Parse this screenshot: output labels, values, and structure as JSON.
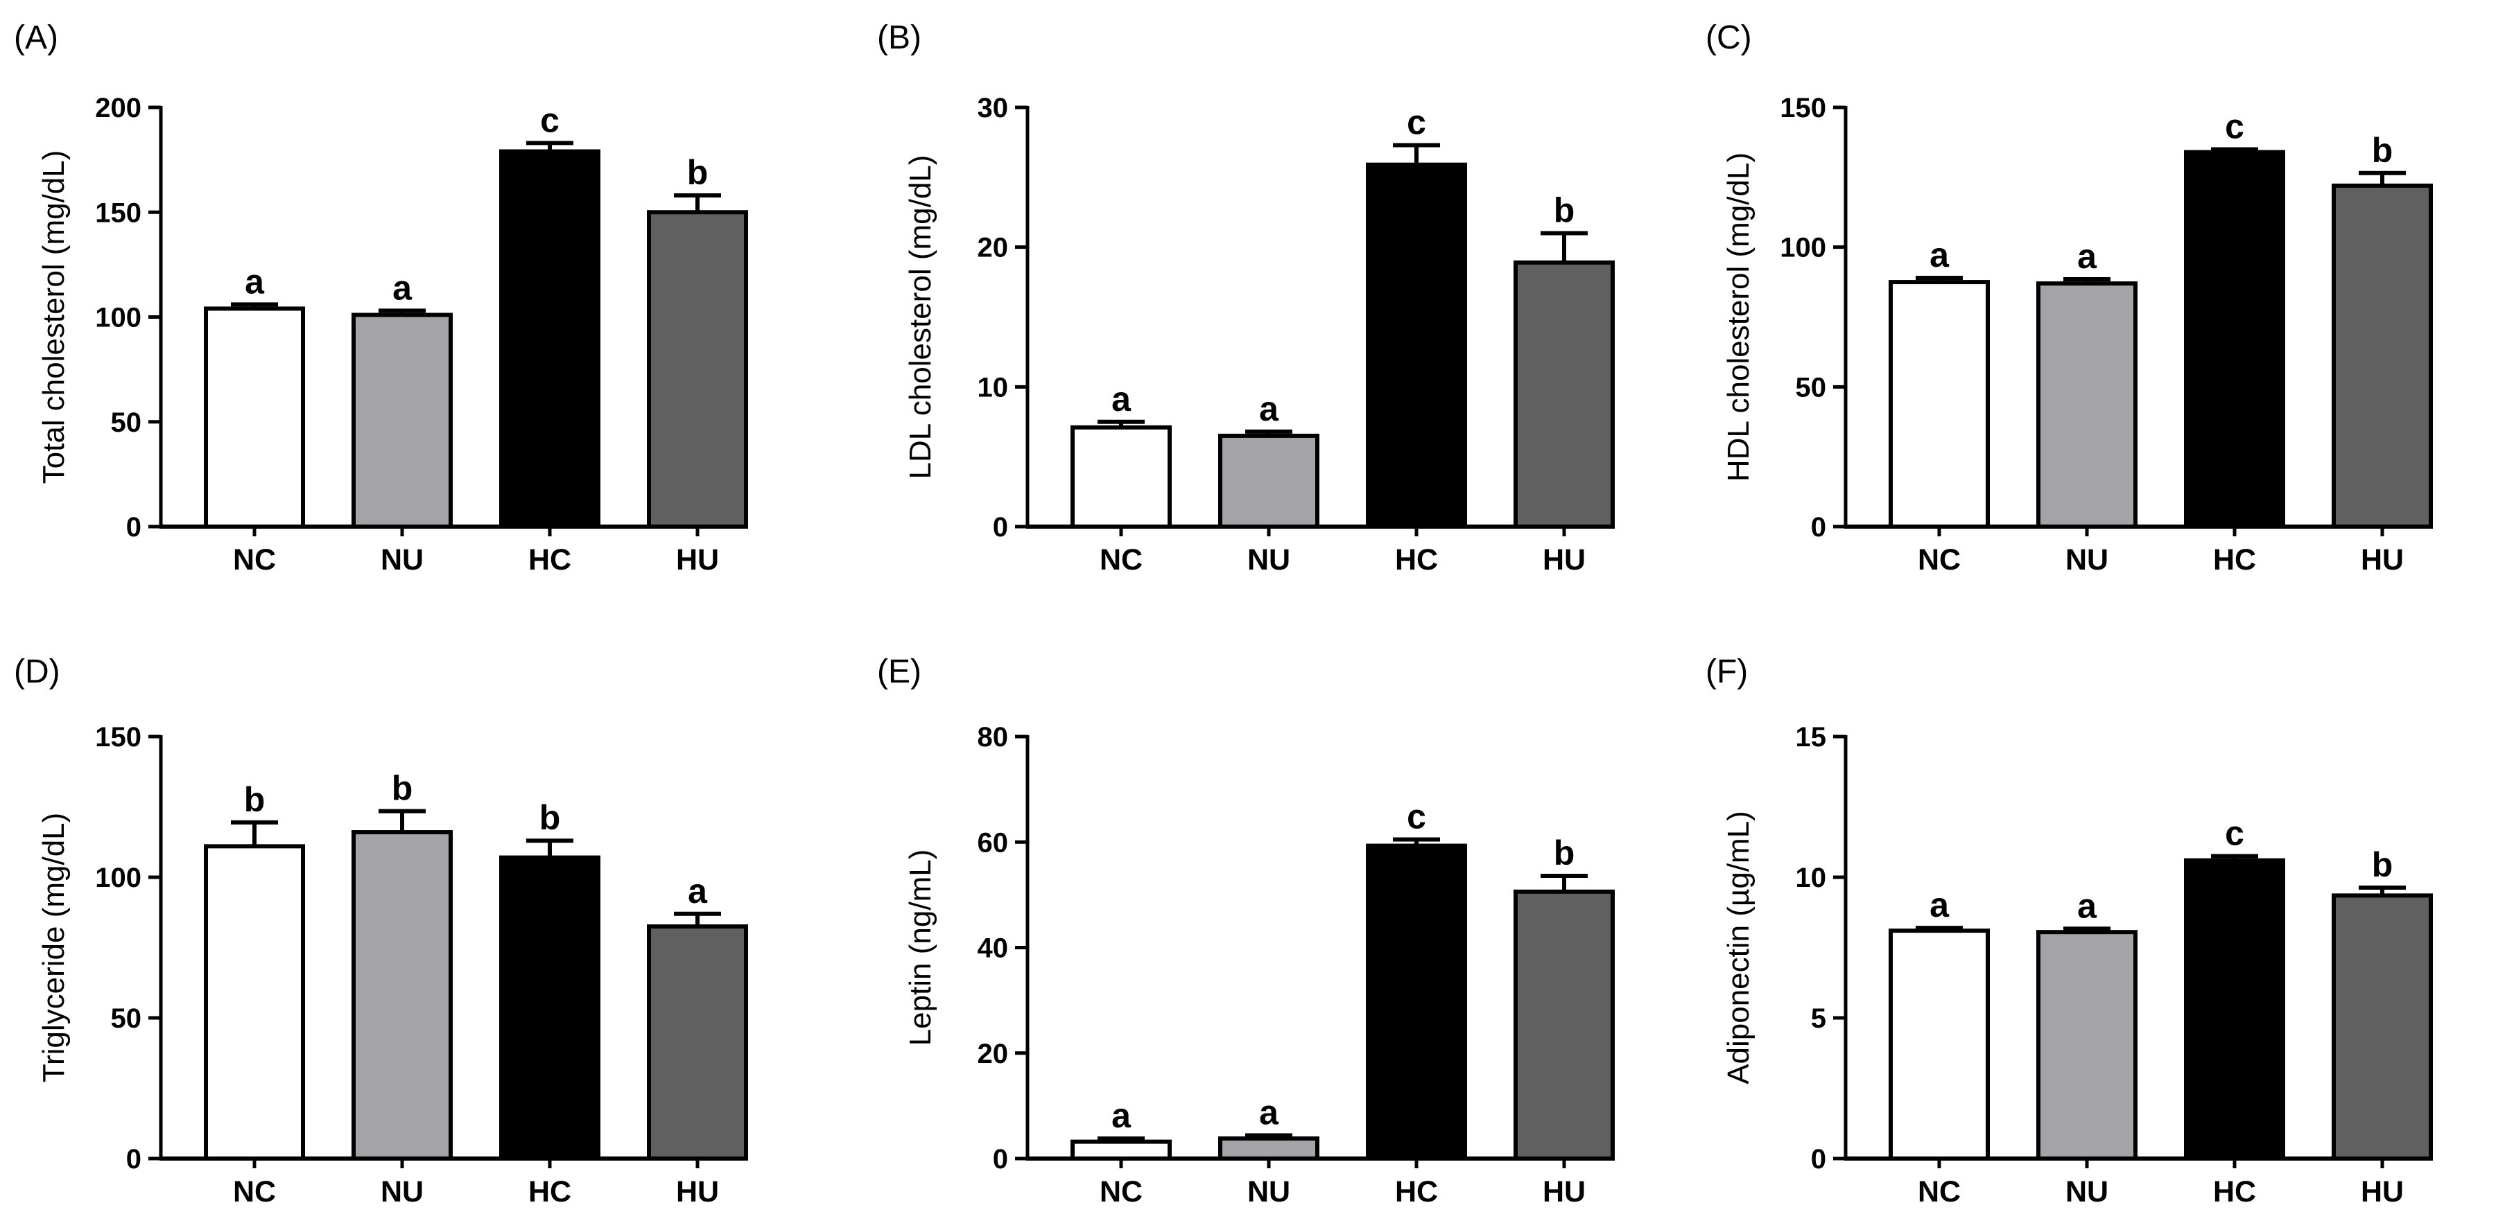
{
  "colors": {
    "NC": "#ffffff",
    "NU": "#a3a3a8",
    "HC": "#000000",
    "HU": "#606060",
    "stroke": "#000000"
  },
  "chart_data": [
    {
      "type": "bar",
      "panel": "(A)",
      "ylabel": "Total cholesterol (mg/dL)",
      "categories": [
        "NC",
        "NU",
        "HC",
        "HU"
      ],
      "values": [
        104,
        101,
        179,
        150
      ],
      "errors": [
        2,
        2,
        4,
        8
      ],
      "letters": [
        "a",
        "a",
        "c",
        "b"
      ],
      "ylim": [
        0,
        200
      ],
      "yticks": [
        0,
        50,
        100,
        150,
        200
      ]
    },
    {
      "type": "bar",
      "panel": "(B)",
      "ylabel": "LDL cholesterol (mg/dL)",
      "categories": [
        "NC",
        "NU",
        "HC",
        "HU"
      ],
      "values": [
        7.1,
        6.5,
        25.9,
        18.9
      ],
      "errors": [
        0.4,
        0.3,
        1.4,
        2.1
      ],
      "letters": [
        "a",
        "a",
        "c",
        "b"
      ],
      "ylim": [
        0,
        30
      ],
      "yticks": [
        0,
        10,
        20,
        30
      ]
    },
    {
      "type": "bar",
      "panel": "(C)",
      "ylabel": "HDL cholesterol (mg/dL)",
      "categories": [
        "NC",
        "NU",
        "HC",
        "HU"
      ],
      "values": [
        87.5,
        87,
        134,
        122
      ],
      "errors": [
        1.5,
        1.5,
        1,
        4.5
      ],
      "letters": [
        "a",
        "a",
        "c",
        "b"
      ],
      "ylim": [
        0,
        150
      ],
      "yticks": [
        0,
        50,
        100,
        150
      ]
    },
    {
      "type": "bar",
      "panel": "(D)",
      "ylabel": "Triglyceride (mg/dL)",
      "categories": [
        "NC",
        "NU",
        "HC",
        "HU"
      ],
      "values": [
        111,
        116,
        107,
        82.5
      ],
      "errors": [
        8.5,
        7.5,
        6,
        4.5
      ],
      "letters": [
        "b",
        "b",
        "b",
        "a"
      ],
      "ylim": [
        0,
        150
      ],
      "yticks": [
        0,
        50,
        100,
        150
      ]
    },
    {
      "type": "bar",
      "panel": "(E)",
      "ylabel": "Leptin (ng/mL)",
      "categories": [
        "NC",
        "NU",
        "HC",
        "HU"
      ],
      "values": [
        3.2,
        3.8,
        59.3,
        50.6
      ],
      "errors": [
        0.6,
        0.6,
        1.2,
        3
      ],
      "letters": [
        "a",
        "a",
        "c",
        "b"
      ],
      "ylim": [
        0,
        80
      ],
      "yticks": [
        0,
        20,
        40,
        60,
        80
      ]
    },
    {
      "type": "bar",
      "panel": "(F)",
      "ylabel": "Adiponectin (µg/mL)",
      "categories": [
        "NC",
        "NU",
        "HC",
        "HU"
      ],
      "values": [
        8.1,
        8.05,
        10.6,
        9.35
      ],
      "errors": [
        0.1,
        0.12,
        0.15,
        0.28
      ],
      "letters": [
        "a",
        "a",
        "c",
        "b"
      ],
      "ylim": [
        0,
        15
      ],
      "yticks": [
        0,
        5,
        10,
        15
      ]
    }
  ]
}
